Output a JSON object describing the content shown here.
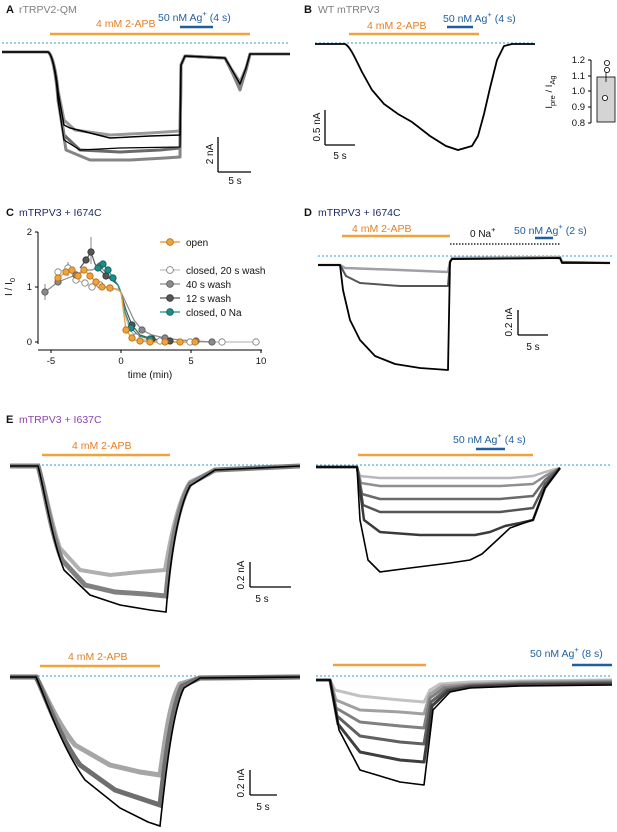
{
  "colors": {
    "orange": "#f0a23c",
    "blue": "#1f5fa0",
    "baseline": "#2b9fd8",
    "teal": "#1a8f8a",
    "navy": "#1c2a6b",
    "purple": "#8e44ad"
  },
  "panels": {
    "A": {
      "letter": "A",
      "title": "rTRPV2-QM",
      "drug": "4 mM 2-APB",
      "ag": "50 nM Ag",
      "ag_sup": "+",
      "ag_dur": "(4 s)",
      "scale_y": "2 nA",
      "scale_x": "5 s"
    },
    "B": {
      "letter": "B",
      "title": "WT mTRPV3",
      "drug": "4 mM 2-APB",
      "ag": "50 nM Ag",
      "ag_sup": "+",
      "ag_dur": "(4 s)",
      "scale_y": "0.5 nA",
      "scale_x": "5 s",
      "inset": {
        "ylabel_main": "I",
        "ylabel_sub1": "pre",
        "ylabel_mid": " / I",
        "ylabel_sub2": "Ag",
        "ticks": [
          "1.2",
          "1.1",
          "1.0",
          "0.9",
          "0.8"
        ]
      }
    },
    "C": {
      "letter": "C",
      "title": "mTRPV3 + I674C",
      "xlabel": "time (min)",
      "ylabel": "I / I",
      "ylabel_sub": "0",
      "xticks": [
        "-5",
        "0",
        "5",
        "10"
      ],
      "yticks": [
        "0",
        "1",
        "2"
      ],
      "legend": [
        "open",
        "closed, 20 s wash",
        "40 s wash",
        "12 s wash",
        "closed, 0 Na"
      ]
    },
    "D": {
      "letter": "D",
      "title": "mTRPV3 + I674C",
      "drug": "4 mM 2-APB",
      "na": "0 Na",
      "na_sup": "+",
      "ag": "50 nM Ag",
      "ag_sup": "+",
      "ag_dur": "(2 s)",
      "scale_y": "0.2 nA",
      "scale_x": "5 s"
    },
    "E": {
      "letter": "E",
      "title": "mTRPV3 + I637C",
      "drug": "4 mM 2-APB",
      "ag1": "50 nM Ag",
      "ag1_sup": "+",
      "ag1_dur": "(4 s)",
      "ag2": "50 nM Ag",
      "ag2_sup": "+",
      "ag2_dur": "(8 s)",
      "scale_y": "0.2 nA",
      "scale_x": "5 s"
    }
  }
}
